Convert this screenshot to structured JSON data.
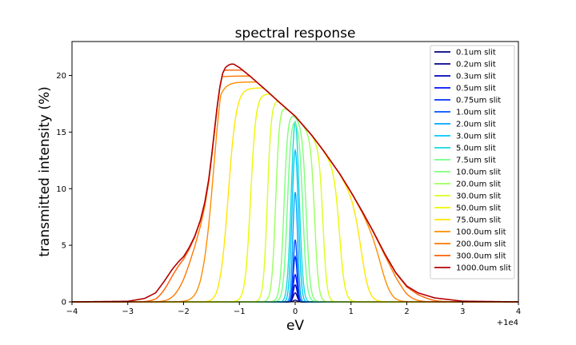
{
  "chart_data": {
    "type": "line",
    "title": "spectral response",
    "xlabel": "eV",
    "ylabel": "transmitted intensity (%)",
    "x_offset_label": "+1e4",
    "xlim": [
      -4,
      4
    ],
    "ylim": [
      0,
      23
    ],
    "x_ticks": [
      -4,
      -3,
      -2,
      -1,
      0,
      1,
      2,
      3,
      4
    ],
    "y_ticks": [
      0,
      5,
      10,
      15,
      20
    ],
    "grid": false,
    "legend_position": "top-right",
    "envelope": {
      "x": [
        -4.0,
        -3.0,
        -2.7,
        -2.5,
        -2.35,
        -2.2,
        -2.1,
        -2.0,
        -1.9,
        -1.8,
        -1.7,
        -1.62,
        -1.55,
        -1.5,
        -1.45,
        -1.4,
        -1.35,
        -1.3,
        -1.25,
        -1.2,
        -1.15,
        -1.1,
        -1.0,
        -0.8,
        -0.5,
        -0.3,
        0.0,
        0.3,
        0.5,
        0.8,
        1.0,
        1.2,
        1.4,
        1.6,
        1.8,
        2.0,
        2.2,
        2.5,
        3.0,
        4.0
      ],
      "y": [
        0.0,
        0.05,
        0.3,
        0.8,
        1.8,
        2.9,
        3.5,
        4.0,
        4.8,
        5.8,
        7.2,
        8.8,
        10.8,
        12.8,
        15.0,
        17.2,
        19.0,
        20.2,
        20.7,
        20.9,
        21.0,
        21.0,
        20.7,
        19.9,
        18.6,
        17.7,
        16.4,
        14.7,
        13.4,
        11.3,
        9.7,
        8.0,
        6.2,
        4.3,
        2.6,
        1.4,
        0.8,
        0.35,
        0.06,
        0.0
      ]
    },
    "series": [
      {
        "name": "0.1um slit",
        "half_width": 0.05,
        "peak": 0.15,
        "color": "#00007f"
      },
      {
        "name": "0.2um slit",
        "half_width": 0.05,
        "peak": 0.8,
        "color": "#00008f"
      },
      {
        "name": "0.3um slit",
        "half_width": 0.05,
        "peak": 1.5,
        "color": "#0000b6"
      },
      {
        "name": "0.5um slit",
        "half_width": 0.05,
        "peak": 2.4,
        "color": "#0010ff"
      },
      {
        "name": "0.75um slit",
        "half_width": 0.05,
        "peak": 4.0,
        "color": "#0030ff"
      },
      {
        "name": "1.0um slit",
        "half_width": 0.05,
        "peak": 5.5,
        "color": "#0050ff"
      },
      {
        "name": "2.0um slit",
        "half_width": 0.06,
        "peak": 9.7,
        "color": "#00a4ff"
      },
      {
        "name": "3.0um slit",
        "half_width": 0.08,
        "peak": 13.4,
        "color": "#00c8f8"
      },
      {
        "name": "5.0um slit",
        "half_width": 0.1,
        "peak": 15.9,
        "color": "#16d8e0"
      },
      {
        "name": "7.5um slit",
        "half_width": 0.14,
        "peak": 16.3,
        "color": "#70ff86"
      },
      {
        "name": "10.0um slit",
        "half_width": 0.2,
        "peak": 16.5,
        "color": "#80ff77"
      },
      {
        "name": "20.0um slit",
        "half_width": 0.35,
        "peak": 16.8,
        "color": "#9aff5c"
      },
      {
        "name": "30.0um slit",
        "half_width": 0.5,
        "peak": 17.0,
        "color": "#d7ff1f"
      },
      {
        "name": "50.0um slit",
        "half_width": 0.8,
        "peak": 17.5,
        "color": "#ecf800"
      },
      {
        "name": "75.0um slit",
        "half_width": 1.2,
        "peak": 18.0,
        "color": "#ffe600"
      },
      {
        "name": "100.0um slit",
        "half_width": 1.6,
        "peak": 18.5,
        "color": "#ff8c00"
      },
      {
        "name": "200.0um slit",
        "half_width": 2.0,
        "peak": 19.0,
        "color": "#ff7800"
      },
      {
        "name": "300.0um slit",
        "half_width": 2.4,
        "peak": 19.5,
        "color": "#ff6000"
      },
      {
        "name": "1000.0um slit",
        "half_width": 10.0,
        "peak": 21.0,
        "color": "#b40000"
      }
    ]
  }
}
